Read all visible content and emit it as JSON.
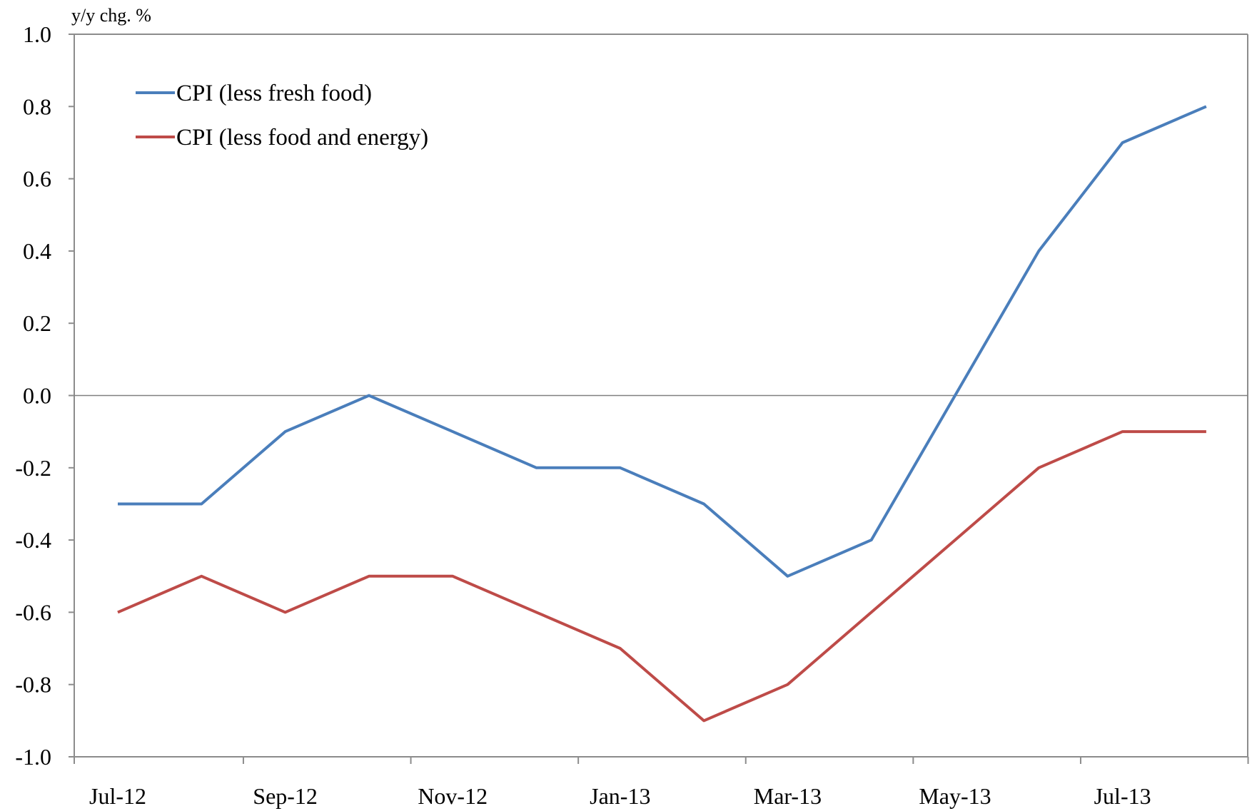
{
  "chart_data": {
    "type": "line",
    "ylabel": "y/y chg. %",
    "ylim": [
      -1.0,
      1.0
    ],
    "yticks": [
      "1.0",
      "0.8",
      "0.6",
      "0.4",
      "0.2",
      "0.0",
      "-0.2",
      "-0.4",
      "-0.6",
      "-0.8",
      "-1.0"
    ],
    "ytick_values": [
      1.0,
      0.8,
      0.6,
      0.4,
      0.2,
      0.0,
      -0.2,
      -0.4,
      -0.6,
      -0.8,
      -1.0
    ],
    "categories": [
      "Jul-12",
      "Aug-12",
      "Sep-12",
      "Oct-12",
      "Nov-12",
      "Dec-12",
      "Jan-13",
      "Feb-13",
      "Mar-13",
      "Apr-13",
      "May-13",
      "Jun-13",
      "Jul-13",
      "Aug-13"
    ],
    "xtick_labels": [
      "Jul-12",
      "Sep-12",
      "Nov-12",
      "Jan-13",
      "Mar-13",
      "May-13",
      "Jul-13"
    ],
    "grid": false,
    "zero_line": true,
    "legend_position": "top-left",
    "series": [
      {
        "name": "CPI (less fresh food)",
        "color": "#4a7ebb",
        "values": [
          -0.3,
          -0.3,
          -0.1,
          0.0,
          -0.1,
          -0.2,
          -0.2,
          -0.3,
          -0.5,
          -0.4,
          0.0,
          0.4,
          0.7,
          0.8
        ]
      },
      {
        "name": "CPI (less food and energy)",
        "color": "#be4b48",
        "values": [
          -0.6,
          -0.5,
          -0.6,
          -0.5,
          -0.5,
          -0.6,
          -0.7,
          -0.9,
          -0.8,
          -0.6,
          -0.4,
          -0.2,
          -0.1,
          -0.1
        ]
      }
    ]
  }
}
